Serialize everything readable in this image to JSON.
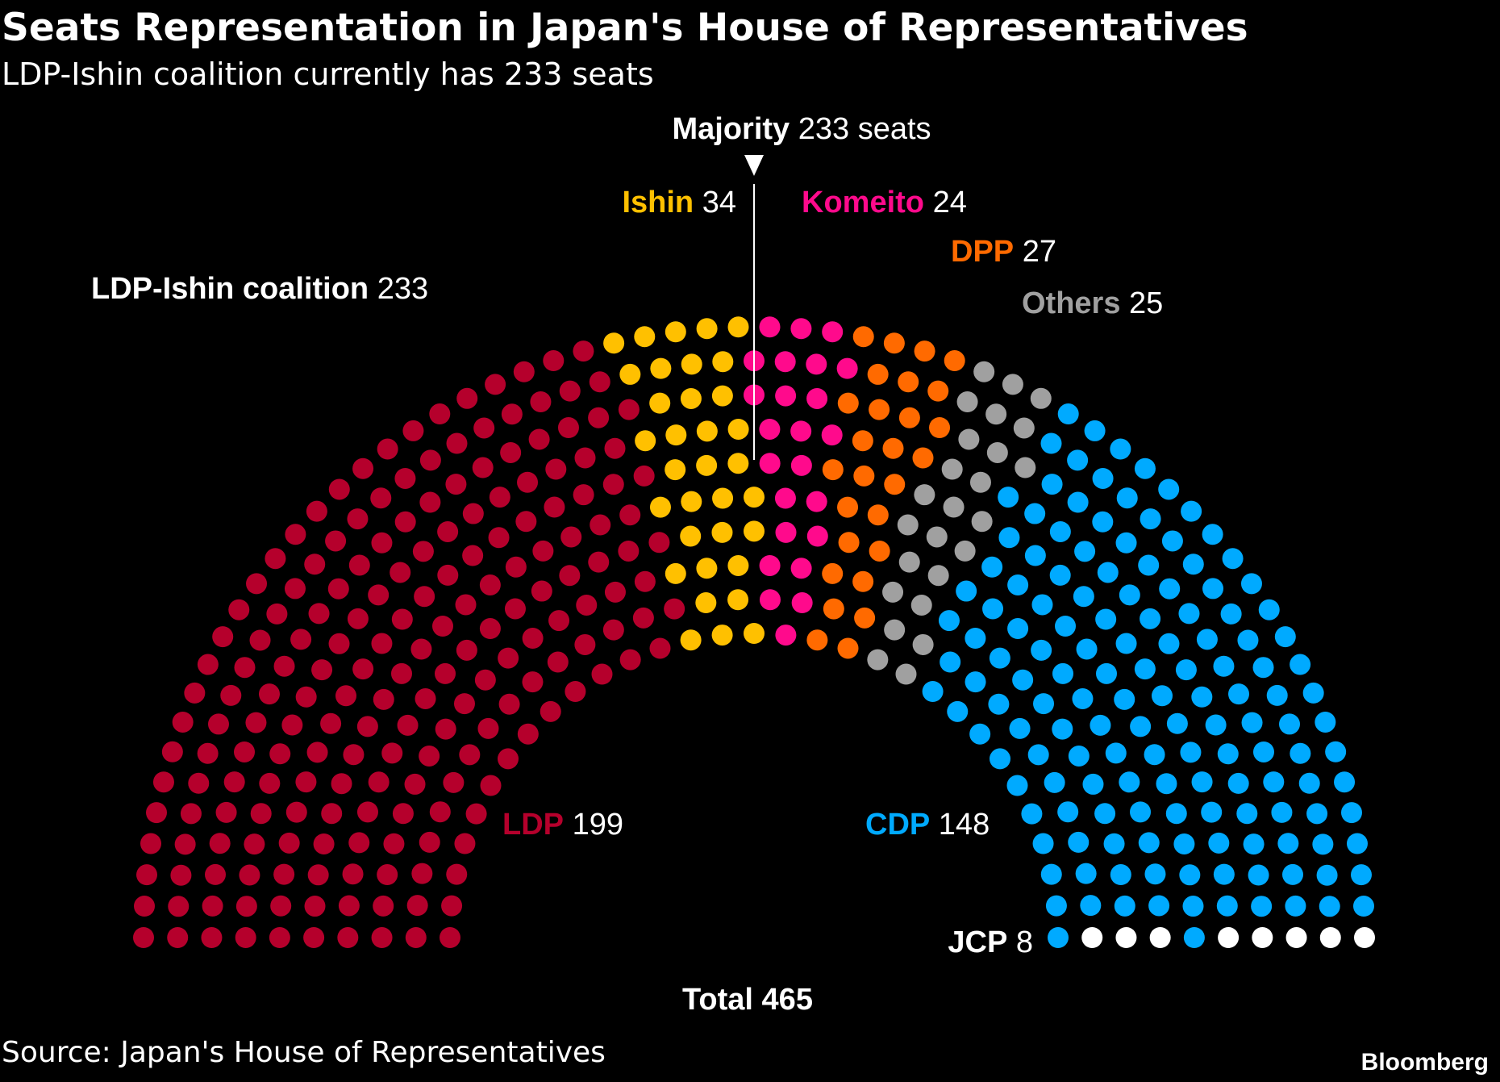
{
  "chart_data": {
    "type": "parliament",
    "title": "Seats Representation in Japan's House of Representatives",
    "subtitle": "LDP-Ishin coalition currently has 233 seats",
    "categories": [
      "LDP",
      "Ishin",
      "Komeito",
      "DPP",
      "Others",
      "CDP",
      "JCP"
    ],
    "values": [
      199,
      34,
      24,
      27,
      25,
      148,
      8
    ],
    "colors": [
      "#b5002c",
      "#ffc000",
      "#ff0a8c",
      "#ff6a00",
      "#a0a0a0",
      "#00aaff",
      "#ffffff"
    ],
    "majority": {
      "label": "Majority",
      "value": 233,
      "value_label": "233 seats"
    },
    "coalition": {
      "label": "LDP-Ishin coalition",
      "value": 233
    },
    "total": {
      "label": "Total",
      "value": 465
    },
    "source": "Source: Japan's House of Representatives",
    "brand": "Bloomberg"
  }
}
